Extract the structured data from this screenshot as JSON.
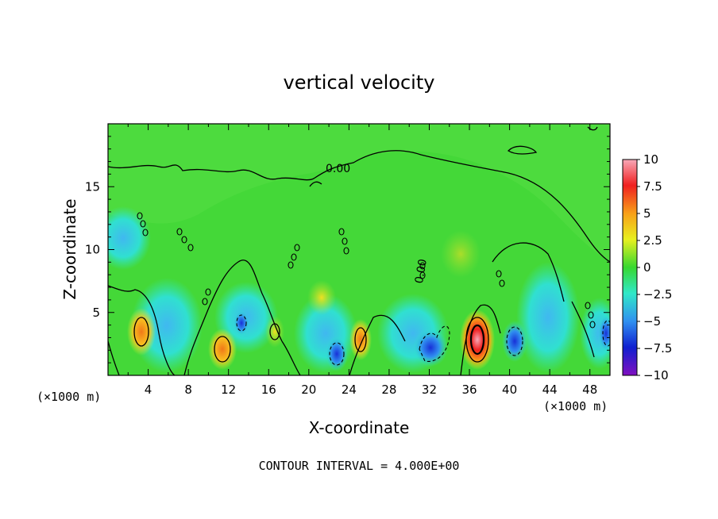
{
  "chart_data": {
    "type": "heatmap",
    "title": "vertical velocity",
    "xlabel": "X-coordinate",
    "ylabel": "Z-coordinate",
    "x_unit_left": "(×1000 m)",
    "x_unit_right": "(×1000 m)",
    "xlim": [
      0,
      50
    ],
    "ylim": [
      0,
      20
    ],
    "x_ticks": [
      "4",
      "8",
      "12",
      "16",
      "20",
      "24",
      "28",
      "32",
      "36",
      "40",
      "44",
      "48"
    ],
    "y_ticks": [
      "5",
      "10",
      "15"
    ],
    "colorbar": {
      "range": [
        -10,
        10
      ],
      "labels": [
        "10",
        "7.5",
        "5",
        "2.5",
        "0",
        "−2.5",
        "−5",
        "−7.5",
        "−10"
      ],
      "colors": [
        "#f8a8b8",
        "#f02020",
        "#f8a018",
        "#e8f020",
        "#38d830",
        "#30e8c8",
        "#3090f0",
        "#1020d0",
        "#8010c0"
      ]
    },
    "contour_labels": [
      "0.00",
      "0.00"
    ],
    "features": [
      {
        "type": "updraft",
        "x": 37,
        "z": 3,
        "peak": 10
      },
      {
        "type": "updraft",
        "x": 11.5,
        "z": 2.5,
        "peak": 6
      },
      {
        "type": "updraft",
        "x": 3,
        "z": 4,
        "peak": 5
      },
      {
        "type": "updraft",
        "x": 25,
        "z": 3,
        "peak": 5
      },
      {
        "type": "updraft",
        "x": 16.5,
        "z": 3.5,
        "peak": 4
      },
      {
        "type": "downdraft",
        "x": 22.5,
        "z": 1.5,
        "peak": -7
      },
      {
        "type": "downdraft",
        "x": 40.5,
        "z": 2.5,
        "peak": -6
      },
      {
        "type": "downdraft",
        "x": 32.5,
        "z": 2,
        "peak": -5
      },
      {
        "type": "downdraft",
        "x": 13.5,
        "z": 4,
        "peak": -4
      },
      {
        "type": "downdraft",
        "x": 49.5,
        "z": 3,
        "peak": -5
      }
    ]
  },
  "footer": {
    "contour_interval": "CONTOUR INTERVAL = 4.000E+00"
  }
}
